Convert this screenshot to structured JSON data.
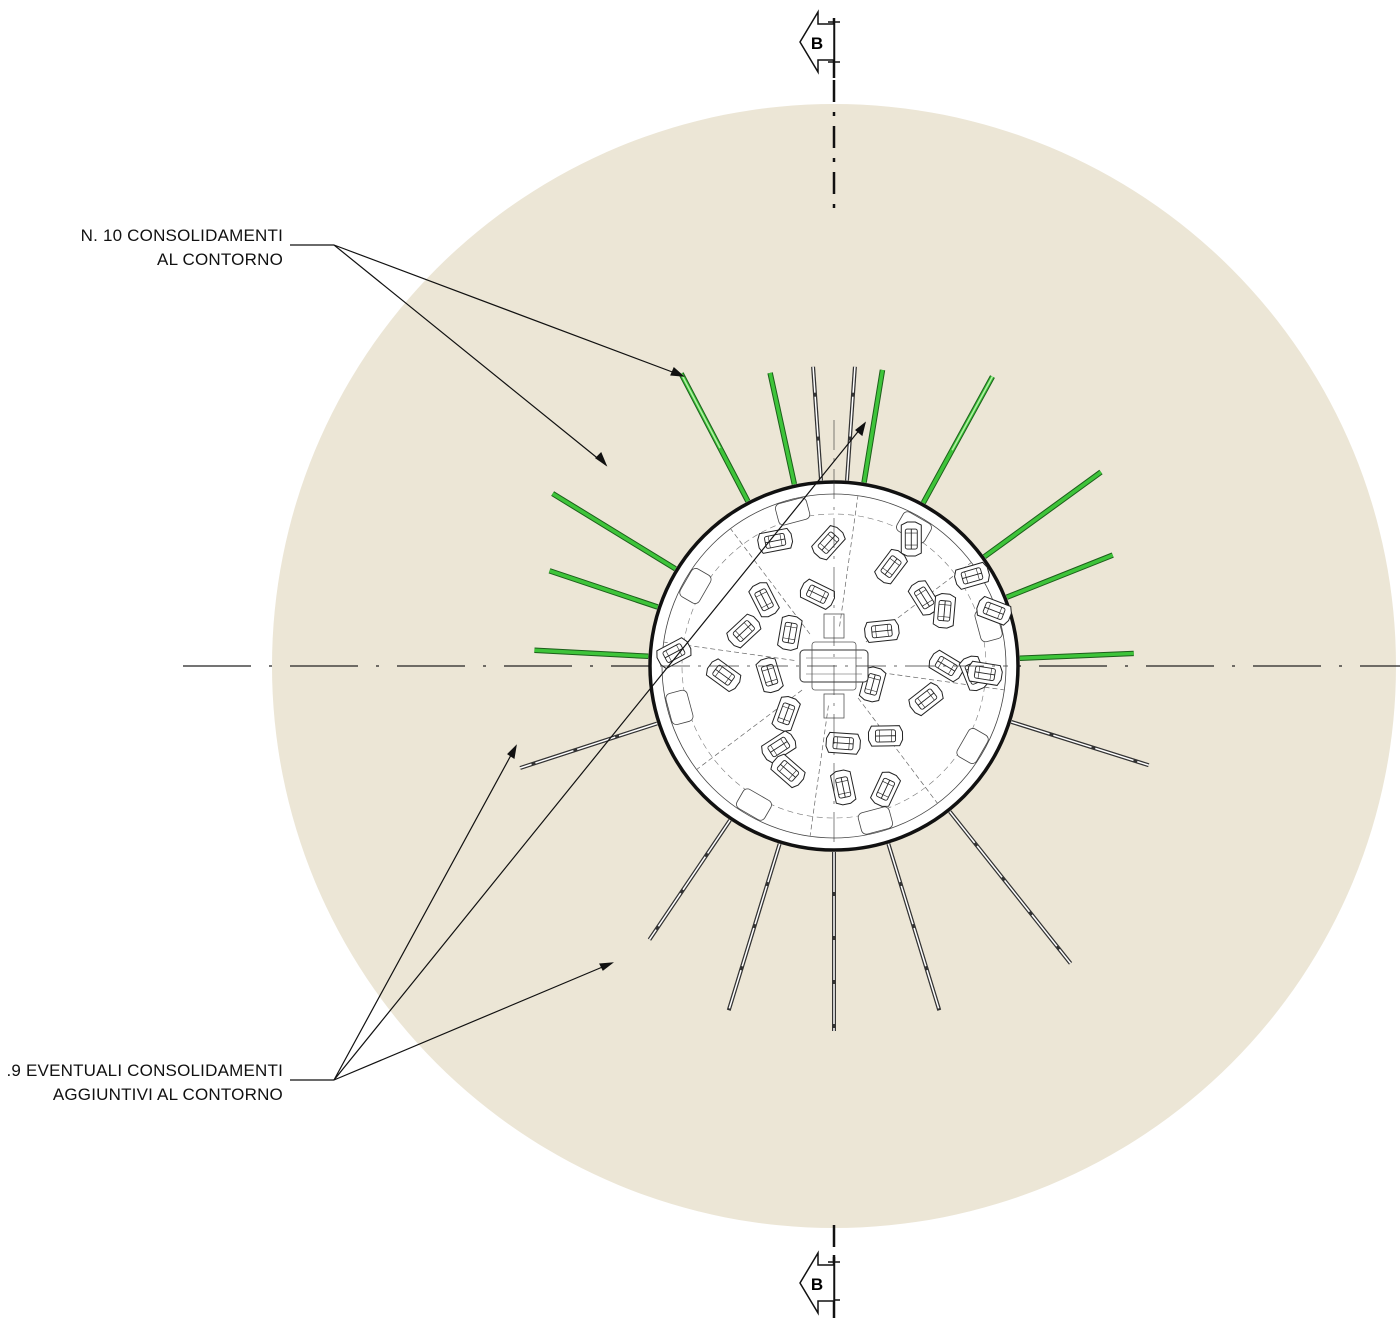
{
  "colors": {
    "soil": "#ece6d6",
    "consolidation": "#3ec43a",
    "consolidation_light": "#b6f0a8",
    "additional": "#777777",
    "line": "#111111"
  },
  "section_marker_top": {
    "letter": "B"
  },
  "section_marker_bottom": {
    "letter": "B"
  },
  "labels": {
    "consolidamenti": {
      "line1": "N. 10 CONSOLIDAMENTI",
      "line2": "AL CONTORNO"
    },
    "aggiuntivi": {
      "line1": ".9 EVENTUALI CONSOLIDAMENTI",
      "line2": "AGGIUNTIVI AL CONTORNO"
    }
  }
}
